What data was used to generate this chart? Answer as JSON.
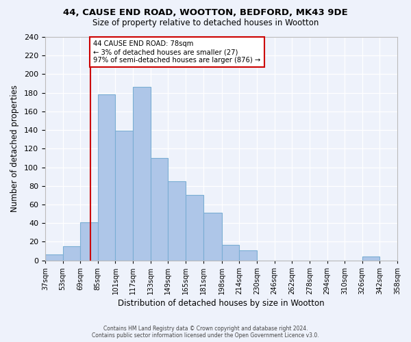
{
  "title": "44, CAUSE END ROAD, WOOTTON, BEDFORD, MK43 9DE",
  "subtitle": "Size of property relative to detached houses in Wootton",
  "xlabel": "Distribution of detached houses by size in Wootton",
  "ylabel": "Number of detached properties",
  "footer_line1": "Contains HM Land Registry data © Crown copyright and database right 2024.",
  "footer_line2": "Contains public sector information licensed under the Open Government Licence v3.0.",
  "bin_edges": [
    37,
    53,
    69,
    85,
    101,
    117,
    133,
    149,
    165,
    181,
    198,
    214,
    230,
    246,
    262,
    278,
    294,
    310,
    326,
    342,
    358
  ],
  "bin_labels": [
    "37sqm",
    "53sqm",
    "69sqm",
    "85sqm",
    "101sqm",
    "117sqm",
    "133sqm",
    "149sqm",
    "165sqm",
    "181sqm",
    "198sqm",
    "214sqm",
    "230sqm",
    "246sqm",
    "262sqm",
    "278sqm",
    "294sqm",
    "310sqm",
    "326sqm",
    "342sqm",
    "358sqm"
  ],
  "bar_heights": [
    6,
    15,
    41,
    178,
    139,
    186,
    110,
    85,
    70,
    51,
    17,
    11,
    0,
    0,
    0,
    0,
    0,
    0,
    4,
    0
  ],
  "bar_color": "#aec6e8",
  "bar_edge_color": "#7aaed4",
  "vline_x": 78,
  "vline_color": "#cc0000",
  "annotation_line1": "44 CAUSE END ROAD: 78sqm",
  "annotation_line2": "← 3% of detached houses are smaller (27)",
  "annotation_line3": "97% of semi-detached houses are larger (876) →",
  "annotation_box_color": "white",
  "annotation_box_edge_color": "#cc0000",
  "ylim": [
    0,
    240
  ],
  "yticks": [
    0,
    20,
    40,
    60,
    80,
    100,
    120,
    140,
    160,
    180,
    200,
    220,
    240
  ],
  "background_color": "#eef2fb",
  "plot_background_color": "#eef2fb"
}
